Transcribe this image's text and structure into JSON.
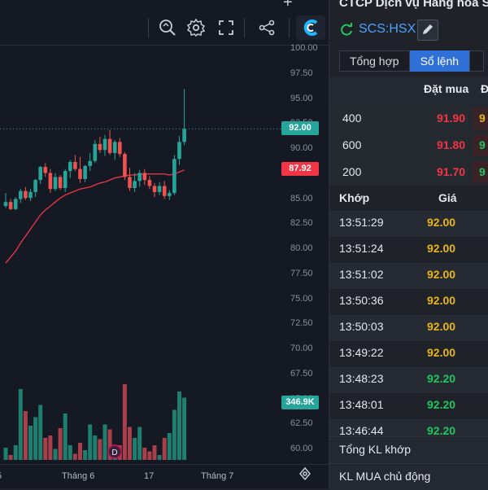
{
  "toolbar": {
    "icons": [
      "magnifier-icon",
      "gear-icon",
      "fullscreen-icon",
      "share-icon",
      "brand-logo-icon"
    ]
  },
  "chart_data": {
    "type": "candlestick",
    "y_ticks": [
      "100.00",
      "97.50",
      "95.00",
      "92.50",
      "90.00",
      "87.50",
      "85.00",
      "82.50",
      "80.00",
      "77.50",
      "75.00",
      "72.50",
      "70.00",
      "67.50",
      "65.00",
      "62.50",
      "60.00"
    ],
    "x_ticks": [
      "5",
      "Tháng 6",
      "17",
      "Tháng 7"
    ],
    "last_price_label": "92.00",
    "ma_label": "87.92",
    "volume_label": "346.9K",
    "event_marker": "D",
    "colors": {
      "up": "#26a69a",
      "down": "#ef5350",
      "ma": "#f23645",
      "upVol": "#1f7f6e",
      "downVol": "#a83f4a"
    },
    "candles": [
      {
        "o": 84.3,
        "h": 85.6,
        "l": 84.1,
        "c": 84.7
      },
      {
        "o": 84.7,
        "h": 85.0,
        "l": 83.9,
        "c": 84.0
      },
      {
        "o": 84.0,
        "h": 85.2,
        "l": 83.9,
        "c": 85.0
      },
      {
        "o": 85.0,
        "h": 86.0,
        "l": 84.6,
        "c": 85.8
      },
      {
        "o": 85.8,
        "h": 86.2,
        "l": 84.9,
        "c": 85.1
      },
      {
        "o": 85.1,
        "h": 86.0,
        "l": 84.8,
        "c": 85.7
      },
      {
        "o": 85.7,
        "h": 87.0,
        "l": 85.2,
        "c": 86.9
      },
      {
        "o": 86.9,
        "h": 88.3,
        "l": 86.5,
        "c": 88.2
      },
      {
        "o": 88.2,
        "h": 88.6,
        "l": 87.2,
        "c": 87.6
      },
      {
        "o": 87.6,
        "h": 88.0,
        "l": 85.6,
        "c": 86.0
      },
      {
        "o": 86.0,
        "h": 87.6,
        "l": 85.8,
        "c": 87.2
      },
      {
        "o": 87.2,
        "h": 87.4,
        "l": 85.9,
        "c": 86.1
      },
      {
        "o": 86.1,
        "h": 88.0,
        "l": 85.7,
        "c": 87.8
      },
      {
        "o": 87.8,
        "h": 88.9,
        "l": 87.1,
        "c": 88.7
      },
      {
        "o": 88.7,
        "h": 89.4,
        "l": 87.8,
        "c": 88.0
      },
      {
        "o": 88.0,
        "h": 89.2,
        "l": 86.6,
        "c": 87.0
      },
      {
        "o": 87.0,
        "h": 88.4,
        "l": 86.7,
        "c": 88.3
      },
      {
        "o": 88.3,
        "h": 89.6,
        "l": 87.8,
        "c": 88.8
      },
      {
        "o": 88.8,
        "h": 90.9,
        "l": 88.6,
        "c": 90.5
      },
      {
        "o": 90.5,
        "h": 91.2,
        "l": 89.6,
        "c": 89.9
      },
      {
        "o": 89.9,
        "h": 91.4,
        "l": 89.3,
        "c": 91.0
      },
      {
        "o": 91.0,
        "h": 91.9,
        "l": 89.4,
        "c": 89.6
      },
      {
        "o": 89.6,
        "h": 90.9,
        "l": 88.9,
        "c": 90.7
      },
      {
        "o": 90.7,
        "h": 91.1,
        "l": 89.2,
        "c": 89.5
      },
      {
        "o": 89.5,
        "h": 89.7,
        "l": 86.9,
        "c": 87.2
      },
      {
        "o": 87.2,
        "h": 88.1,
        "l": 85.8,
        "c": 86.1
      },
      {
        "o": 86.1,
        "h": 87.6,
        "l": 85.7,
        "c": 86.8
      },
      {
        "o": 86.8,
        "h": 87.9,
        "l": 86.2,
        "c": 87.6
      },
      {
        "o": 87.6,
        "h": 88.0,
        "l": 86.4,
        "c": 86.9
      },
      {
        "o": 86.9,
        "h": 87.3,
        "l": 86.0,
        "c": 86.3
      },
      {
        "o": 86.3,
        "h": 86.6,
        "l": 85.2,
        "c": 85.7
      },
      {
        "o": 85.7,
        "h": 86.7,
        "l": 85.4,
        "c": 86.3
      },
      {
        "o": 86.3,
        "h": 86.8,
        "l": 85.0,
        "c": 85.3
      },
      {
        "o": 85.3,
        "h": 85.9,
        "l": 84.9,
        "c": 85.6
      },
      {
        "o": 85.6,
        "h": 89.4,
        "l": 85.4,
        "c": 89.0
      },
      {
        "o": 89.0,
        "h": 91.3,
        "l": 88.4,
        "c": 90.7
      },
      {
        "o": 90.7,
        "h": 96.0,
        "l": 90.4,
        "c": 92.0
      }
    ],
    "ma": [
      78.6,
      79.2,
      79.8,
      80.6,
      81.3,
      82.0,
      82.7,
      83.4,
      83.9,
      84.3,
      84.7,
      85.1,
      85.4,
      85.6,
      85.8,
      86.0,
      86.1,
      86.2,
      86.4,
      86.6,
      86.7,
      86.9,
      87.1,
      87.2,
      87.3,
      87.4,
      87.4,
      87.5,
      87.5,
      87.5,
      87.5,
      87.5,
      87.5,
      87.4,
      87.5,
      87.7,
      87.9
    ],
    "volume": [
      0.1,
      0.04,
      0.12,
      0.58,
      0.4,
      0.28,
      0.35,
      0.45,
      0.18,
      0.2,
      0.09,
      0.26,
      0.38,
      0.12,
      0.05,
      0.14,
      0.08,
      0.29,
      0.2,
      0.17,
      0.29,
      0.25,
      0.06,
      0.12,
      0.62,
      0.27,
      0.18,
      0.27,
      0.1,
      0.07,
      0.12,
      0.04,
      0.18,
      0.22,
      0.41,
      0.56,
      0.51
    ]
  },
  "company": "CTCP Dịch vụ Hàng hóa S",
  "symbol": "SCS:HSX",
  "tabs": [
    "Tổng hợp",
    "Sổ lệnh",
    ""
  ],
  "orderbook": {
    "header_buy": "Đặt mua",
    "header_partial": "Đ",
    "rows": [
      {
        "vol": "400",
        "price": "91.90",
        "next": "9",
        "next_color": "#e7b51b"
      },
      {
        "vol": "600",
        "price": "91.80",
        "next": "9",
        "next_color": "#22c55e"
      },
      {
        "vol": "200",
        "price": "91.70",
        "next": "9",
        "next_color": "#22c55e"
      }
    ]
  },
  "trades": {
    "header_time": "Khớp",
    "header_price": "Giá",
    "rows": [
      {
        "time": "13:51:29",
        "price": "92.00",
        "color": "#e7b51b"
      },
      {
        "time": "13:51:24",
        "price": "92.00",
        "color": "#e7b51b"
      },
      {
        "time": "13:51:02",
        "price": "92.00",
        "color": "#e7b51b"
      },
      {
        "time": "13:50:36",
        "price": "92.00",
        "color": "#e7b51b"
      },
      {
        "time": "13:50:03",
        "price": "92.00",
        "color": "#e7b51b"
      },
      {
        "time": "13:49:22",
        "price": "92.00",
        "color": "#e7b51b"
      },
      {
        "time": "13:48:23",
        "price": "92.20",
        "color": "#22c55e"
      },
      {
        "time": "13:48:01",
        "price": "92.20",
        "color": "#22c55e"
      },
      {
        "time": "13:46:44",
        "price": "92.20",
        "color": "#22c55e"
      }
    ]
  },
  "summary": {
    "total_matched": "Tổng KL khớp",
    "active_buy": "KL MUA chủ động"
  }
}
